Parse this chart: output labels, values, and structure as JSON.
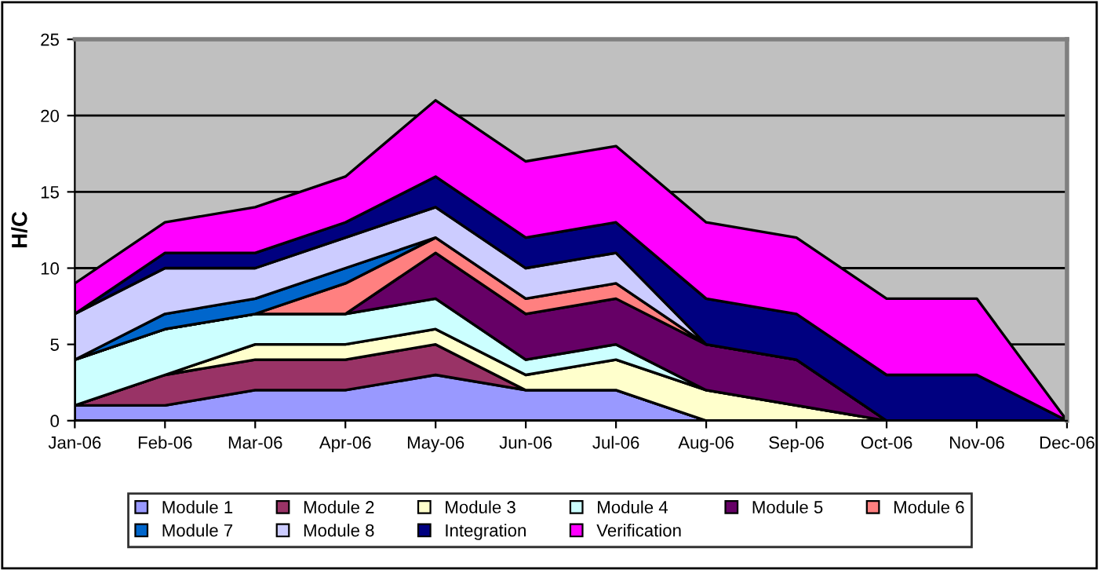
{
  "chart_data": {
    "type": "area",
    "stacked": true,
    "ylabel": "H/C",
    "categories": [
      "Jan-06",
      "Feb-06",
      "Mar-06",
      "Apr-06",
      "May-06",
      "Jun-06",
      "Jul-06",
      "Aug-06",
      "Sep-06",
      "Oct-06",
      "Nov-06",
      "Dec-06"
    ],
    "series": [
      {
        "name": "Module 1",
        "color": "#9999ff",
        "values": [
          1,
          1,
          2,
          2,
          3,
          2,
          2,
          0,
          0,
          0,
          0,
          0
        ]
      },
      {
        "name": "Module 2",
        "color": "#993366",
        "values": [
          0,
          2,
          2,
          2,
          2,
          0,
          0,
          0,
          0,
          0,
          0,
          0
        ]
      },
      {
        "name": "Module 3",
        "color": "#ffffcc",
        "values": [
          0,
          0,
          1,
          1,
          1,
          1,
          2,
          2,
          1,
          0,
          0,
          0
        ]
      },
      {
        "name": "Module 4",
        "color": "#ccffff",
        "values": [
          3,
          3,
          2,
          2,
          2,
          1,
          1,
          0,
          0,
          0,
          0,
          0
        ]
      },
      {
        "name": "Module 5",
        "color": "#660066",
        "values": [
          0,
          0,
          0,
          0,
          3,
          3,
          3,
          3,
          3,
          0,
          0,
          0
        ]
      },
      {
        "name": "Module 6",
        "color": "#ff8080",
        "values": [
          0,
          0,
          0,
          2,
          1,
          1,
          1,
          0,
          0,
          0,
          0,
          0
        ]
      },
      {
        "name": "Module 7",
        "color": "#0066cc",
        "values": [
          0,
          1,
          1,
          1,
          0,
          null,
          null,
          null,
          null,
          null,
          null,
          null
        ]
      },
      {
        "name": "Module 8",
        "color": "#ccccff",
        "values": [
          3,
          3,
          2,
          2,
          2,
          2,
          2,
          0,
          0,
          0,
          0,
          0
        ]
      },
      {
        "name": "Integration",
        "color": "#000080",
        "values": [
          0,
          1,
          1,
          1,
          2,
          2,
          2,
          3,
          3,
          3,
          3,
          0
        ]
      },
      {
        "name": "Verification",
        "color": "#ff00ff",
        "values": [
          2,
          2,
          3,
          3,
          5,
          5,
          5,
          5,
          5,
          5,
          5,
          0
        ]
      }
    ],
    "ylim": [
      0,
      25
    ],
    "yticks": [
      0,
      5,
      10,
      15,
      20,
      25
    ],
    "grid": "y",
    "legend": "bottom"
  }
}
